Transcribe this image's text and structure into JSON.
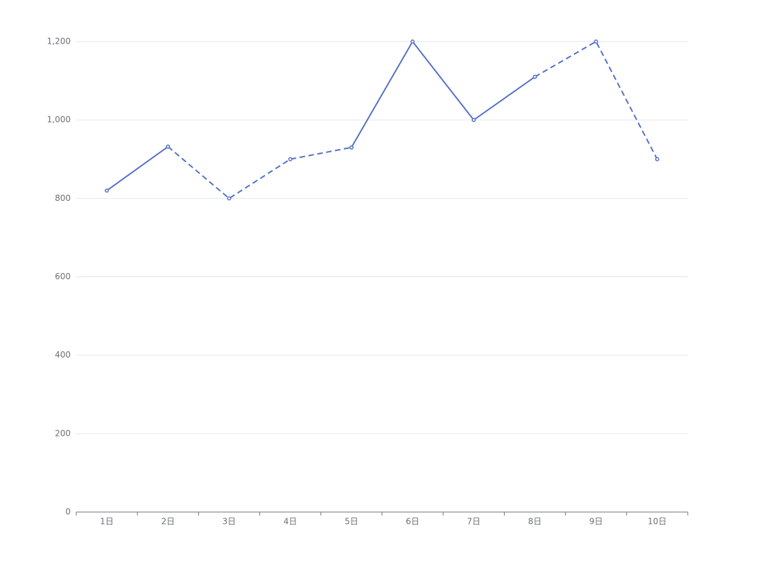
{
  "chart_data": {
    "type": "line",
    "categories": [
      "1日",
      "2日",
      "3日",
      "4日",
      "5日",
      "6日",
      "7日",
      "8日",
      "9日",
      "10日"
    ],
    "series": [
      {
        "color": "#5470c6",
        "line_style": "solid",
        "values": [
          820,
          932,
          null,
          null,
          930,
          1200,
          1000,
          1110,
          null,
          null
        ]
      },
      {
        "color": "#5470c6",
        "line_style": "dashed",
        "values": [
          null,
          932,
          800,
          900,
          930,
          null,
          null,
          1110,
          1200,
          900
        ]
      }
    ],
    "ylim": [
      0,
      1200
    ],
    "yticks": [
      0,
      200,
      400,
      600,
      800,
      {
        "value": 1000,
        "label": "1,000"
      },
      {
        "value": 1200,
        "label": "1,200"
      }
    ],
    "grid": true
  }
}
